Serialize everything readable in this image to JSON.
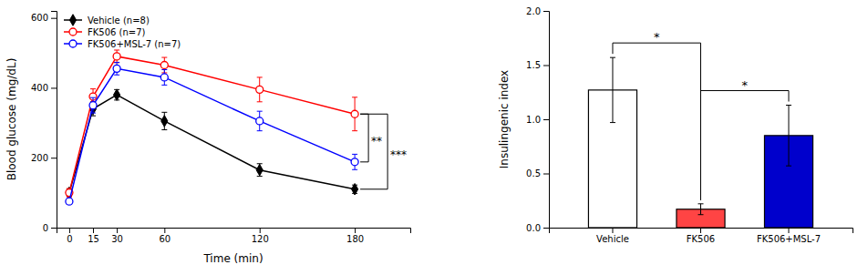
{
  "chart_data": [
    {
      "type": "line",
      "x": [
        0,
        15,
        30,
        60,
        120,
        180
      ],
      "xlabel": "Time (min)",
      "ylabel": "Blood glucose (mg/dL)",
      "xlim": [
        -8,
        215
      ],
      "xticks": [
        0,
        15,
        30,
        60,
        120,
        180
      ],
      "ylim": [
        0,
        620
      ],
      "yticks": [
        0,
        200,
        400,
        600
      ],
      "grid": false,
      "legend": "top-left",
      "series": [
        {
          "name": "Vehicle (n=8)",
          "color": "#000000",
          "marker": "diamond",
          "values": [
            100,
            340,
            380,
            305,
            165,
            110
          ],
          "errors": [
            10,
            20,
            15,
            25,
            18,
            12
          ]
        },
        {
          "name": "FK506 (n=7)",
          "color": "#ff0000",
          "marker": "circle",
          "values": [
            100,
            375,
            490,
            465,
            395,
            325
          ],
          "errors": [
            12,
            22,
            18,
            22,
            35,
            48
          ]
        },
        {
          "name": "FK506+MSL-7 (n=7)",
          "color": "#0000ff",
          "marker": "circle",
          "values": [
            75,
            350,
            455,
            430,
            305,
            188
          ],
          "errors": [
            8,
            22,
            18,
            22,
            28,
            22
          ]
        }
      ],
      "annotations": [
        {
          "text": "**",
          "between": [
            "FK506 (n=7)",
            "FK506+MSL-7 (n=7)"
          ]
        },
        {
          "text": "***",
          "between": [
            "Vehicle (n=8)",
            "FK506 (n=7)"
          ]
        }
      ]
    },
    {
      "type": "bar",
      "categories": [
        "Vehicle",
        "FK506",
        "FK506+MSL-7"
      ],
      "values": [
        1.27,
        0.17,
        0.85
      ],
      "errors": [
        0.3,
        0.05,
        0.28
      ],
      "colors": [
        "#ffffff",
        "#ff4444",
        "#0000cc"
      ],
      "ylabel": "Insulingenic index",
      "ylim": [
        0,
        2.0
      ],
      "yticks": [
        {
          "value": 0.0,
          "label": "0.0"
        },
        0.5,
        {
          "value": 1.0,
          "label": "1.0"
        },
        1.5,
        {
          "value": 2.0,
          "label": "2.0"
        }
      ],
      "grid": false,
      "annotations": [
        {
          "text": "*",
          "between": [
            "Vehicle",
            "FK506"
          ]
        },
        {
          "text": "*",
          "between": [
            "FK506",
            "FK506+MSL-7"
          ]
        }
      ]
    }
  ]
}
